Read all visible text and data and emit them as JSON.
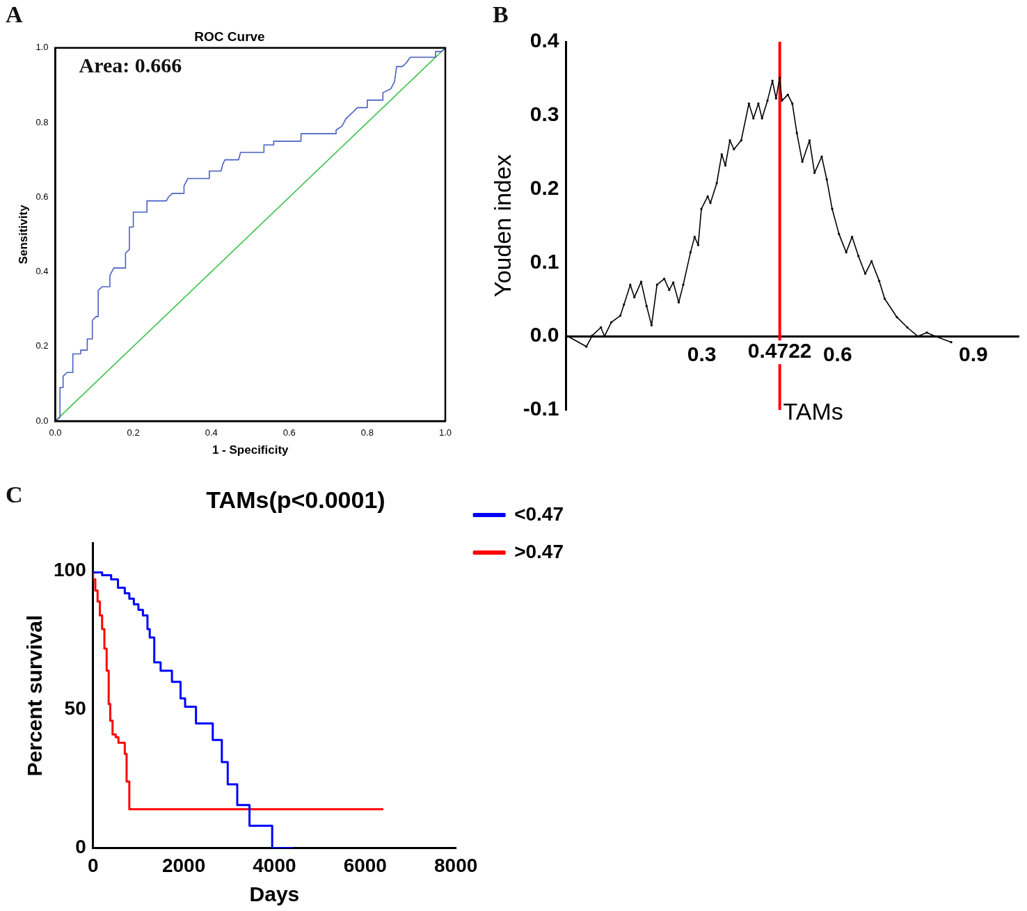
{
  "chart_data": [
    {
      "type": "line",
      "title": "ROC Curve",
      "xlabel": "1 - Specificity",
      "ylabel": "Sensitivity",
      "annotations": [
        "A",
        "Area: 0.666"
      ],
      "xlim": [
        0,
        1
      ],
      "ylim": [
        0,
        1
      ],
      "xticks": [
        {
          "value": 0,
          "label": "0.0"
        },
        {
          "value": 0.2,
          "label": "0.2"
        },
        {
          "value": 0.4,
          "label": "0.4"
        },
        {
          "value": 0.6,
          "label": "0.6"
        },
        {
          "value": 0.8,
          "label": "0.8"
        },
        {
          "value": 1,
          "label": "1.0"
        }
      ],
      "yticks": [
        {
          "value": 0,
          "label": "0.0"
        },
        {
          "value": 0.2,
          "label": "0.2"
        },
        {
          "value": 0.4,
          "label": "0.4"
        },
        {
          "value": 0.6,
          "label": "0.6"
        },
        {
          "value": 0.8,
          "label": "0.8"
        },
        {
          "value": 1,
          "label": "1.0"
        }
      ],
      "grid": false,
      "legend": false,
      "marker": "none",
      "series": [
        {
          "color": "#4a5fc1",
          "x": [
            0,
            0.012,
            0.012,
            0.02,
            0.02,
            0.03,
            0.045,
            0.045,
            0.065,
            0.065,
            0.082,
            0.082,
            0.095,
            0.095,
            0.105,
            0.11,
            0.11,
            0.12,
            0.14,
            0.14,
            0.15,
            0.18,
            0.18,
            0.19,
            0.19,
            0.2,
            0.2,
            0.235,
            0.235,
            0.285,
            0.29,
            0.3,
            0.33,
            0.33,
            0.34,
            0.395,
            0.395,
            0.425,
            0.43,
            0.435,
            0.47,
            0.475,
            0.535,
            0.535,
            0.56,
            0.56,
            0.63,
            0.63,
            0.72,
            0.72,
            0.735,
            0.745,
            0.755,
            0.765,
            0.775,
            0.8,
            0.8,
            0.84,
            0.84,
            0.86,
            0.87,
            0.875,
            0.89,
            0.9,
            0.91,
            0.975,
            0.975,
            0.99,
            1
          ],
          "values": [
            0,
            0.01,
            0.09,
            0.09,
            0.12,
            0.13,
            0.13,
            0.18,
            0.18,
            0.19,
            0.19,
            0.22,
            0.22,
            0.27,
            0.28,
            0.28,
            0.35,
            0.36,
            0.36,
            0.39,
            0.41,
            0.41,
            0.45,
            0.46,
            0.52,
            0.52,
            0.56,
            0.56,
            0.59,
            0.59,
            0.6,
            0.61,
            0.61,
            0.63,
            0.65,
            0.65,
            0.67,
            0.67,
            0.69,
            0.7,
            0.7,
            0.72,
            0.72,
            0.74,
            0.74,
            0.75,
            0.75,
            0.77,
            0.77,
            0.78,
            0.79,
            0.81,
            0.82,
            0.83,
            0.84,
            0.84,
            0.86,
            0.86,
            0.88,
            0.89,
            0.91,
            0.95,
            0.95,
            0.96,
            0.975,
            0.975,
            0.99,
            0.99,
            1
          ]
        },
        {
          "color": "#3cc24a",
          "x": [
            0,
            1
          ],
          "values": [
            0,
            1
          ]
        }
      ]
    },
    {
      "type": "line",
      "xlabel": "TAMs",
      "ylabel": "Youden index",
      "annotations": [
        "B"
      ],
      "xlim": [
        0,
        1
      ],
      "ylim": [
        -0.1,
        0.4
      ],
      "xticks": [
        0.3,
        0.6,
        0.9
      ],
      "yticks": [
        {
          "value": -0.1,
          "label": "-0.1"
        },
        {
          "value": 0,
          "label": "0.0"
        },
        {
          "value": 0.1,
          "label": "0.1"
        },
        {
          "value": 0.2,
          "label": "0.2"
        },
        {
          "value": 0.3,
          "label": "0.3"
        },
        {
          "value": 0.4,
          "label": "0.4"
        }
      ],
      "grid": false,
      "legend": false,
      "marker": "square",
      "ref_lines": [
        {
          "axis": "x",
          "value": 0.4722,
          "label": "0.4722",
          "color": "#ff0000"
        }
      ],
      "series": [
        {
          "color": "#000000",
          "x": [
            0.004,
            0.045,
            0.058,
            0.077,
            0.085,
            0.1,
            0.12,
            0.128,
            0.142,
            0.151,
            0.166,
            0.178,
            0.189,
            0.201,
            0.217,
            0.228,
            0.237,
            0.249,
            0.259,
            0.275,
            0.284,
            0.292,
            0.299,
            0.313,
            0.319,
            0.333,
            0.344,
            0.352,
            0.362,
            0.371,
            0.387,
            0.404,
            0.414,
            0.425,
            0.433,
            0.445,
            0.456,
            0.464,
            0.472,
            0.477,
            0.49,
            0.5,
            0.51,
            0.522,
            0.538,
            0.549,
            0.565,
            0.576,
            0.588,
            0.603,
            0.619,
            0.632,
            0.646,
            0.661,
            0.675,
            0.692,
            0.704,
            0.731,
            0.754,
            0.777,
            0.797,
            0.816,
            0.851
          ],
          "values": [
            0,
            -0.014,
            0.001,
            0.012,
            0,
            0.019,
            0.028,
            0.043,
            0.07,
            0.053,
            0.074,
            0.041,
            0.015,
            0.07,
            0.078,
            0.063,
            0.073,
            0.046,
            0.07,
            0.114,
            0.135,
            0.124,
            0.173,
            0.19,
            0.181,
            0.208,
            0.247,
            0.232,
            0.266,
            0.254,
            0.266,
            0.316,
            0.296,
            0.316,
            0.296,
            0.32,
            0.347,
            0.323,
            0.351,
            0.32,
            0.328,
            0.316,
            0.276,
            0.237,
            0.266,
            0.222,
            0.244,
            0.213,
            0.173,
            0.139,
            0.114,
            0.135,
            0.109,
            0.085,
            0.102,
            0.075,
            0.051,
            0.026,
            0.012,
            0,
            0.005,
            0,
            -0.008
          ]
        }
      ]
    },
    {
      "type": "step",
      "title": "TAMs(p<0.0001)",
      "xlabel": "Days",
      "ylabel": "Percent survival",
      "annotations": [
        "C"
      ],
      "xlim": [
        0,
        8000
      ],
      "ylim": [
        0,
        110
      ],
      "xticks": [
        0,
        2000,
        4000,
        6000,
        8000
      ],
      "yticks": [
        0,
        50,
        100
      ],
      "grid": false,
      "legend": "top right",
      "series": [
        {
          "name": "<0.47",
          "color": "#0000ff",
          "x": [
            0,
            200,
            400,
            550,
            700,
            800,
            900,
            1000,
            1100,
            1200,
            1250,
            1350,
            1490,
            1740,
            1930,
            2030,
            2270,
            2640,
            2840,
            2970,
            3180,
            3450,
            3950,
            4410
          ],
          "values": [
            100,
            99.5,
            98.5,
            97,
            94,
            92,
            90,
            88,
            86,
            84,
            79,
            76,
            67,
            64,
            60,
            54,
            51,
            45,
            39,
            31,
            23,
            15.5,
            8,
            0
          ]
        },
        {
          "name": ">0.47",
          "color": "#ff0000",
          "x": [
            0,
            50,
            100,
            150,
            200,
            250,
            300,
            345,
            380,
            430,
            500,
            560,
            700,
            740,
            800,
            1020,
            6400
          ],
          "values": [
            100,
            97,
            93,
            89,
            84,
            79,
            72,
            64,
            52,
            46,
            41,
            40,
            38,
            34,
            24,
            14,
            14
          ]
        }
      ]
    }
  ]
}
